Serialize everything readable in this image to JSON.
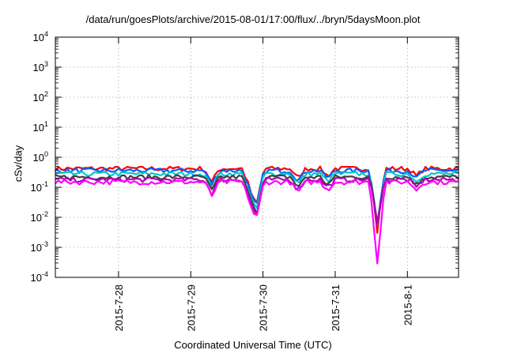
{
  "chart_data": {
    "type": "line",
    "title": "/data/run/goesPlots/archive/2015-08-01/17:00/flux/../bryn/5daysMoon.plot",
    "xlabel": "Coordinated Universal Time (UTC)",
    "ylabel": "cSv/day",
    "yscale": "log",
    "ylim": [
      0.0001,
      10000
    ],
    "yticks": [
      {
        "value": 0.0001,
        "mant": "10",
        "exp": "-4"
      },
      {
        "value": 0.001,
        "mant": "10",
        "exp": "-3"
      },
      {
        "value": 0.01,
        "mant": "10",
        "exp": "-2"
      },
      {
        "value": 0.1,
        "mant": "10",
        "exp": "-1"
      },
      {
        "value": 1,
        "mant": "10",
        "exp": "0"
      },
      {
        "value": 10,
        "mant": "10",
        "exp": "1"
      },
      {
        "value": 100,
        "mant": "10",
        "exp": "2"
      },
      {
        "value": 1000,
        "mant": "10",
        "exp": "3"
      },
      {
        "value": 10000,
        "mant": "10",
        "exp": "4"
      }
    ],
    "xlim": [
      "2015-07-27T03:00",
      "2015-08-01T17:00"
    ],
    "xticks": [
      {
        "value": "2015-07-28T00:00",
        "label": "2015-7-28"
      },
      {
        "value": "2015-07-29T00:00",
        "label": "2015-7-29"
      },
      {
        "value": "2015-07-30T00:00",
        "label": "2015-7-30"
      },
      {
        "value": "2015-07-31T00:00",
        "label": "2015-7-31"
      },
      {
        "value": "2015-08-01T00:00",
        "label": "2015-8-1"
      }
    ],
    "grid": true,
    "legend": "none",
    "series": [
      {
        "color": "#ff0000",
        "base": 0.42,
        "dip": 0.55
      },
      {
        "color": "#0060ff",
        "base": 0.36,
        "dip": 0.5
      },
      {
        "color": "#00c8c8",
        "base": 0.28,
        "dip": 0.45
      },
      {
        "color": "#404040",
        "base": 0.22,
        "dip": 0.4
      },
      {
        "color": "#b000b0",
        "base": 0.18,
        "dip": 0.35
      },
      {
        "color": "#ff00ff",
        "base": 0.15,
        "dip": 0.0025
      }
    ],
    "events": [
      {
        "x": "2015-07-29T07:00",
        "depth": 0.35
      },
      {
        "x": "2015-07-29T19:30",
        "depth": 0.25
      },
      {
        "x": "2015-07-29T21:50",
        "depth": 0.06
      },
      {
        "x": "2015-07-30T11:40",
        "depth": 0.45
      },
      {
        "x": "2015-07-30T21:30",
        "depth": 0.55
      },
      {
        "x": "2015-07-31T14:00",
        "depth": 0.002
      },
      {
        "x": "2015-08-01T03:00",
        "depth": 0.55
      }
    ]
  }
}
